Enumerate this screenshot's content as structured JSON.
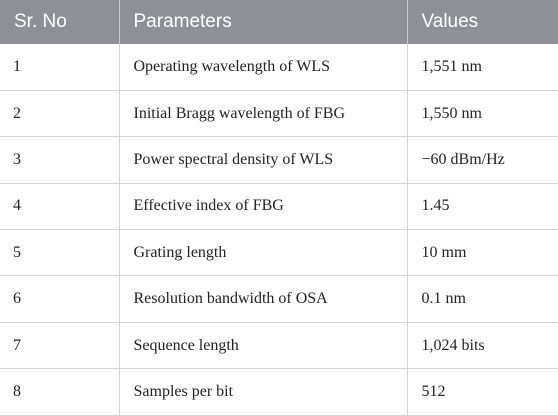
{
  "table": {
    "headers": [
      "Sr. No",
      "Parameters",
      "Values"
    ],
    "rows": [
      [
        "1",
        "Operating wavelength of WLS",
        "1,551 nm"
      ],
      [
        "2",
        "Initial Bragg wavelength of FBG",
        "1,550 nm"
      ],
      [
        "3",
        "Power spectral density of WLS",
        "−60 dBm/Hz"
      ],
      [
        "4",
        "Effective index of FBG",
        "1.45"
      ],
      [
        "5",
        "Grating length",
        "10 mm"
      ],
      [
        "6",
        "Resolution bandwidth of OSA",
        "0.1 nm"
      ],
      [
        "7",
        "Sequence length",
        "1,024 bits"
      ],
      [
        "8",
        "Samples per bit",
        "512"
      ]
    ]
  },
  "colors": {
    "header_bg": "#8d9096",
    "header_text": "#ffffff",
    "grid": "#d3d5d8"
  }
}
